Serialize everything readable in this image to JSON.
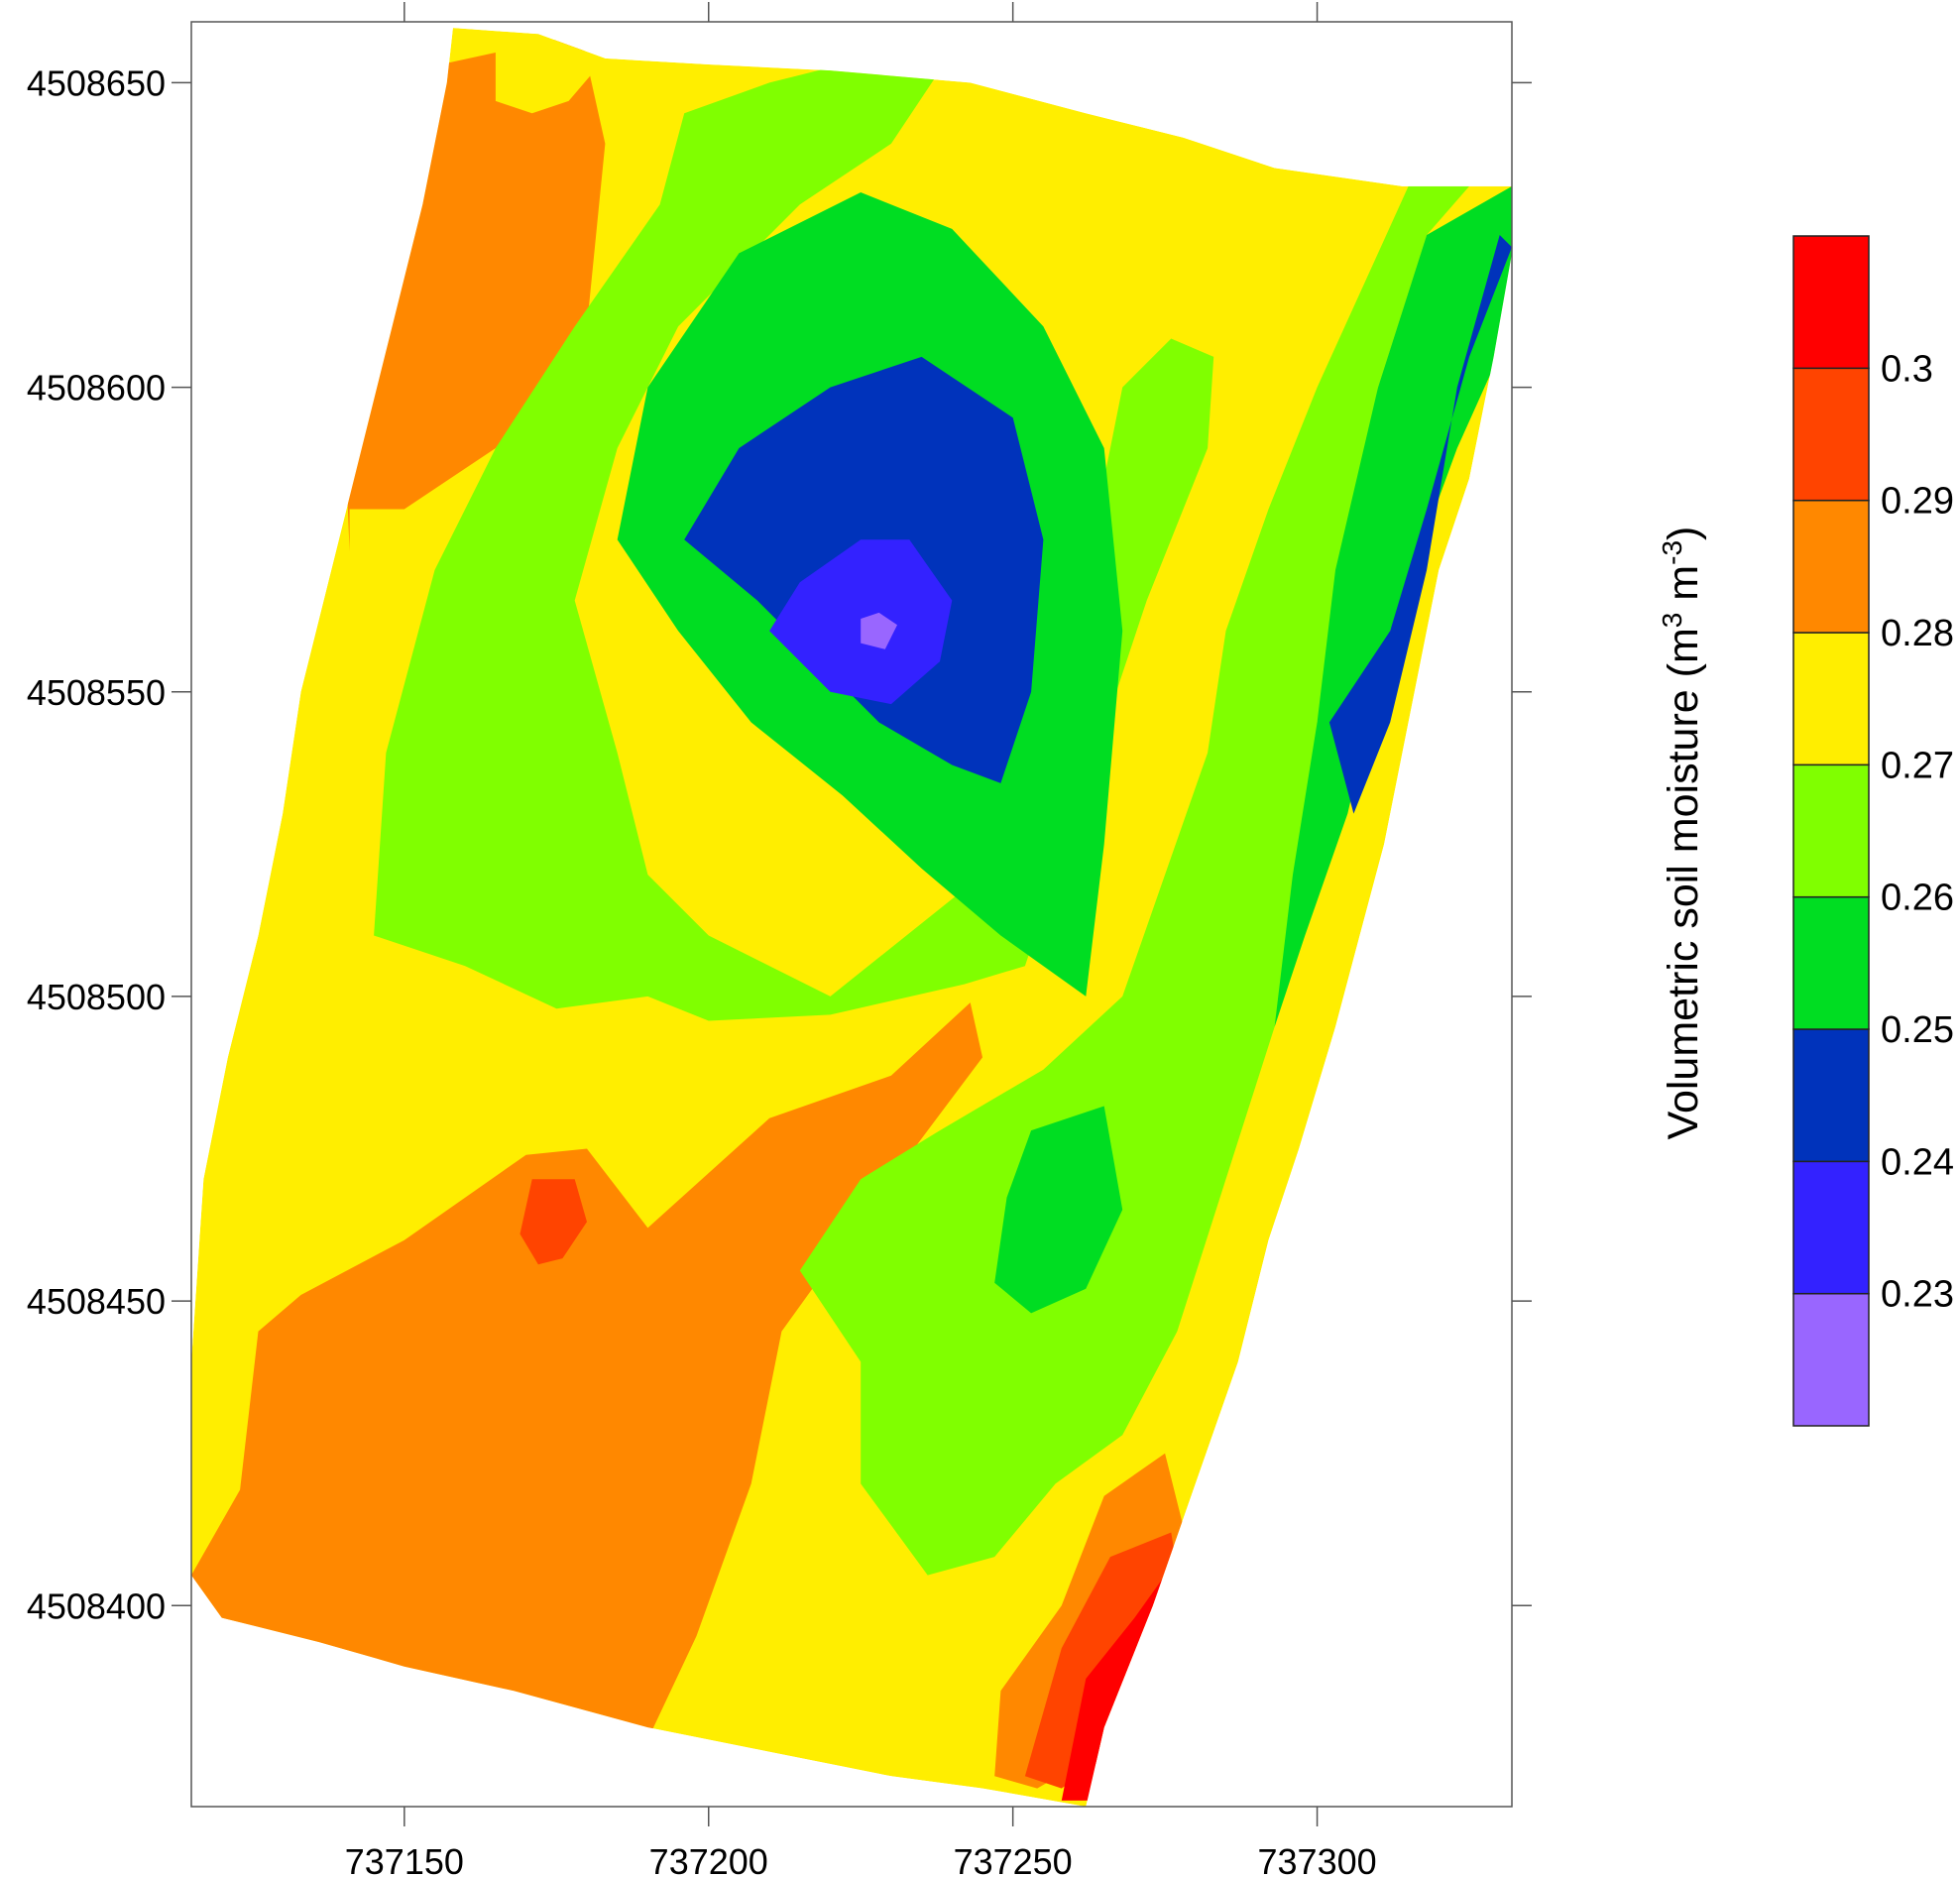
{
  "chart_data": {
    "type": "heatmap",
    "subtype": "filled-contour-map",
    "title": "",
    "xlabel": "",
    "ylabel": "",
    "xlim": [
      737115,
      737332
    ],
    "ylim": [
      4508367,
      4508660
    ],
    "x_ticks": [
      737150,
      737200,
      737250,
      737300
    ],
    "y_ticks": [
      4508400,
      4508450,
      4508500,
      4508550,
      4508600,
      4508650
    ],
    "x_tick_labels": [
      "737150",
      "737200",
      "737250",
      "737300"
    ],
    "y_tick_labels": [
      "4508400",
      "4508450",
      "4508500",
      "4508550",
      "4508600",
      "4508650"
    ],
    "grid": false,
    "colorbar": {
      "title_main": "Volumetric soil moisture (m",
      "title_sup1": "3",
      "title_mid": " m",
      "title_sup2": "-3",
      "title_end": ")",
      "levels": [
        "0.3",
        "0.29",
        "0.28",
        "0.27",
        "0.26",
        "0.25",
        "0.24",
        "0.23"
      ],
      "bands": [
        {
          "range": [
            0.22,
            0.23
          ],
          "color": "#9966ff"
        },
        {
          "range": [
            0.23,
            0.24
          ],
          "color": "#3322ff"
        },
        {
          "range": [
            0.24,
            0.25
          ],
          "color": "#0033bb"
        },
        {
          "range": [
            0.25,
            0.26
          ],
          "color": "#00dd22"
        },
        {
          "range": [
            0.26,
            0.27
          ],
          "color": "#80ff00"
        },
        {
          "range": [
            0.27,
            0.28
          ],
          "color": "#ffee00"
        },
        {
          "range": [
            0.28,
            0.29
          ],
          "color": "#ff8800"
        },
        {
          "range": [
            0.29,
            0.3
          ],
          "color": "#ff4400"
        },
        {
          "range": [
            0.3,
            0.31
          ],
          "color": "#ff0000"
        }
      ]
    },
    "contour_regions": [
      {
        "value_band": [
          0.28,
          0.29
        ],
        "color": "#ff8800",
        "polygon": [
          [
            737115,
            4508405
          ],
          [
            737123,
            4508419
          ],
          [
            737126,
            4508445
          ],
          [
            737133,
            4508451
          ],
          [
            737150,
            4508460
          ],
          [
            737170,
            4508474
          ],
          [
            737180,
            4508475
          ],
          [
            737190,
            4508462
          ],
          [
            737210,
            4508480
          ],
          [
            737230,
            4508487
          ],
          [
            737243,
            4508499
          ],
          [
            737245,
            4508490
          ],
          [
            737230,
            4508470
          ],
          [
            737212,
            4508445
          ],
          [
            737207,
            4508420
          ],
          [
            737198,
            4508395
          ],
          [
            737190,
            4508378
          ],
          [
            737182,
            4508379
          ],
          [
            737170,
            4508381
          ],
          [
            737157,
            4508382
          ],
          [
            737145,
            4508388
          ],
          [
            737132,
            4508391
          ],
          [
            737120,
            4508397
          ]
        ]
      },
      {
        "value_band": [
          0.29,
          0.3
        ],
        "color": "#ff4400",
        "polygon": [
          [
            737171,
            4508470
          ],
          [
            737178,
            4508470
          ],
          [
            737180,
            4508463
          ],
          [
            737176,
            4508457
          ],
          [
            737172,
            4508456
          ],
          [
            737169,
            4508461
          ]
        ]
      },
      {
        "value_band": [
          0.28,
          0.29
        ],
        "color": "#ff8800",
        "polygon": [
          [
            737141,
            4508573
          ],
          [
            737140,
            4508598
          ],
          [
            737143,
            4508610
          ],
          [
            737147,
            4508628
          ],
          [
            737152,
            4508644
          ],
          [
            737156,
            4508653
          ],
          [
            737179,
            4508658
          ],
          [
            737183,
            4508640
          ],
          [
            737180,
            4508610
          ],
          [
            737165,
            4508590
          ],
          [
            737150,
            4508580
          ],
          [
            737141,
            4508580
          ]
        ]
      },
      {
        "value_band": [
          0.27,
          0.28
        ],
        "color": "#ffee00",
        "polygon": [
          [
            737165,
            4508658
          ],
          [
            737172,
            4508658
          ],
          [
            737183,
            4508654
          ],
          [
            737177,
            4508647
          ],
          [
            737171,
            4508645
          ],
          [
            737165,
            4508647
          ]
        ]
      },
      {
        "value_band": [
          0.26,
          0.27
        ],
        "color": "#80ff00",
        "polygon": [
          [
            737145,
            4508510
          ],
          [
            737160,
            4508505
          ],
          [
            737175,
            4508498
          ],
          [
            737190,
            4508500
          ],
          [
            737200,
            4508496
          ],
          [
            737220,
            4508497
          ],
          [
            737242,
            4508502
          ],
          [
            737252,
            4508505
          ],
          [
            737262,
            4508535
          ],
          [
            737272,
            4508565
          ],
          [
            737282,
            4508590
          ],
          [
            737283,
            4508605
          ],
          [
            737276,
            4508608
          ],
          [
            737268,
            4508600
          ],
          [
            737260,
            4508560
          ],
          [
            737245,
            4508520
          ],
          [
            737220,
            4508500
          ],
          [
            737200,
            4508510
          ],
          [
            737190,
            4508520
          ],
          [
            737185,
            4508540
          ],
          [
            737178,
            4508565
          ],
          [
            737185,
            4508590
          ],
          [
            737195,
            4508610
          ],
          [
            737215,
            4508630
          ],
          [
            737230,
            4508640
          ],
          [
            737240,
            4508655
          ],
          [
            737230,
            4508655
          ],
          [
            737210,
            4508650
          ],
          [
            737196,
            4508645
          ],
          [
            737192,
            4508630
          ],
          [
            737178,
            4508610
          ],
          [
            737165,
            4508590
          ],
          [
            737155,
            4508570
          ],
          [
            737147,
            4508540
          ]
        ]
      },
      {
        "value_band": [
          0.26,
          0.27
        ],
        "color": "#80ff00",
        "polygon": [
          [
            737215,
            4508455
          ],
          [
            737225,
            4508440
          ],
          [
            737225,
            4508420
          ],
          [
            737236,
            4508405
          ],
          [
            737247,
            4508408
          ],
          [
            737257,
            4508420
          ],
          [
            737268,
            4508428
          ],
          [
            737277,
            4508445
          ],
          [
            737285,
            4508470
          ],
          [
            737293,
            4508495
          ],
          [
            737298,
            4508520
          ],
          [
            737300,
            4508545
          ],
          [
            737305,
            4508575
          ],
          [
            737310,
            4508600
          ],
          [
            737318,
            4508625
          ],
          [
            737325,
            4508633
          ],
          [
            737315,
            4508633
          ],
          [
            737300,
            4508600
          ],
          [
            737292,
            4508580
          ],
          [
            737285,
            4508560
          ],
          [
            737282,
            4508540
          ],
          [
            737275,
            4508520
          ],
          [
            737268,
            4508500
          ],
          [
            737255,
            4508488
          ],
          [
            737238,
            4508478
          ],
          [
            737225,
            4508470
          ]
        ]
      },
      {
        "value_band": [
          0.25,
          0.26
        ],
        "color": "#00dd22",
        "polygon": [
          [
            737185,
            4508575
          ],
          [
            737195,
            4508560
          ],
          [
            737207,
            4508545
          ],
          [
            737222,
            4508533
          ],
          [
            737235,
            4508521
          ],
          [
            737248,
            4508510
          ],
          [
            737262,
            4508500
          ],
          [
            737265,
            4508525
          ],
          [
            737268,
            4508560
          ],
          [
            737265,
            4508590
          ],
          [
            737255,
            4508610
          ],
          [
            737240,
            4508626
          ],
          [
            737225,
            4508632
          ],
          [
            737205,
            4508622
          ],
          [
            737190,
            4508600
          ]
        ]
      },
      {
        "value_band": [
          0.25,
          0.26
        ],
        "color": "#00dd22",
        "polygon": [
          [
            737253,
            4508478
          ],
          [
            737265,
            4508482
          ],
          [
            737268,
            4508465
          ],
          [
            737262,
            4508452
          ],
          [
            737253,
            4508448
          ],
          [
            737247,
            4508453
          ],
          [
            737249,
            4508467
          ]
        ]
      },
      {
        "value_band": [
          0.25,
          0.26
        ],
        "color": "#00dd22",
        "polygon": [
          [
            737293,
            4508495
          ],
          [
            737296,
            4508520
          ],
          [
            737300,
            4508545
          ],
          [
            737303,
            4508570
          ],
          [
            737310,
            4508600
          ],
          [
            737318,
            4508625
          ],
          [
            737332,
            4508633
          ],
          [
            737332,
            4508610
          ],
          [
            737323,
            4508590
          ],
          [
            737312,
            4508560
          ],
          [
            737305,
            4508530
          ],
          [
            737298,
            4508510
          ]
        ]
      },
      {
        "value_band": [
          0.24,
          0.25
        ],
        "color": "#0033bb",
        "polygon": [
          [
            737208,
            4508565
          ],
          [
            737218,
            4508555
          ],
          [
            737228,
            4508545
          ],
          [
            737240,
            4508538
          ],
          [
            737248,
            4508535
          ],
          [
            737253,
            4508550
          ],
          [
            737255,
            4508575
          ],
          [
            737250,
            4508595
          ],
          [
            737235,
            4508605
          ],
          [
            737220,
            4508600
          ],
          [
            737205,
            4508590
          ],
          [
            737196,
            4508575
          ]
        ]
      },
      {
        "value_band": [
          0.24,
          0.25
        ],
        "color": "#0033bb",
        "polygon": [
          [
            737302,
            4508545
          ],
          [
            737306,
            4508530
          ],
          [
            737312,
            4508545
          ],
          [
            737318,
            4508570
          ],
          [
            737323,
            4508600
          ],
          [
            737330,
            4508625
          ],
          [
            737332,
            4508623
          ],
          [
            737325,
            4508605
          ],
          [
            737318,
            4508580
          ],
          [
            737312,
            4508560
          ]
        ]
      },
      {
        "value_band": [
          0.23,
          0.24
        ],
        "color": "#3322ff",
        "polygon": [
          [
            737210,
            4508560
          ],
          [
            737220,
            4508550
          ],
          [
            737230,
            4508548
          ],
          [
            737238,
            4508555
          ],
          [
            737240,
            4508565
          ],
          [
            737233,
            4508575
          ],
          [
            737225,
            4508575
          ],
          [
            737215,
            4508568
          ]
        ]
      },
      {
        "value_band": [
          0.22,
          0.23
        ],
        "color": "#9966ff",
        "polygon": [
          [
            737225,
            4508558
          ],
          [
            737229,
            4508557
          ],
          [
            737231,
            4508561
          ],
          [
            737228,
            4508563
          ],
          [
            737225,
            4508562
          ]
        ]
      },
      {
        "value_band": [
          0.28,
          0.29
        ],
        "color": "#ff8800",
        "polygon": [
          [
            737247,
            4508372
          ],
          [
            737254,
            4508370
          ],
          [
            737268,
            4508378
          ],
          [
            737280,
            4508405
          ],
          [
            737275,
            4508425
          ],
          [
            737265,
            4508418
          ],
          [
            737258,
            4508400
          ],
          [
            737248,
            4508386
          ]
        ]
      },
      {
        "value_band": [
          0.29,
          0.3
        ],
        "color": "#ff4400",
        "polygon": [
          [
            737252,
            4508372
          ],
          [
            737258,
            4508370
          ],
          [
            737265,
            4508375
          ],
          [
            737278,
            4508400
          ],
          [
            737276,
            4508412
          ],
          [
            737266,
            4508408
          ],
          [
            737258,
            4508393
          ]
        ]
      },
      {
        "value_band": [
          0.3,
          0.31
        ],
        "color": "#ff0000",
        "polygon": [
          [
            737258,
            4508368
          ],
          [
            737263,
            4508368
          ],
          [
            737272,
            4508385
          ],
          [
            737275,
            4508405
          ],
          [
            737270,
            4508398
          ],
          [
            737262,
            4508388
          ]
        ]
      }
    ],
    "domain_outline": [
      [
        737115,
        4508405
      ],
      [
        737120,
        4508398
      ],
      [
        737136,
        4508394
      ],
      [
        737150,
        4508390
      ],
      [
        737168,
        4508386
      ],
      [
        737190,
        4508380
      ],
      [
        737210,
        4508376
      ],
      [
        737230,
        4508372
      ],
      [
        737245,
        4508370
      ],
      [
        737262,
        4508367
      ],
      [
        737265,
        4508380
      ],
      [
        737273,
        4508400
      ],
      [
        737280,
        4508420
      ],
      [
        737287,
        4508440
      ],
      [
        737292,
        4508460
      ],
      [
        737297,
        4508475
      ],
      [
        737303,
        4508495
      ],
      [
        737307,
        4508510
      ],
      [
        737311,
        4508525
      ],
      [
        737315,
        4508545
      ],
      [
        737320,
        4508570
      ],
      [
        737325,
        4508585
      ],
      [
        737329,
        4508605
      ],
      [
        737332,
        4508622
      ],
      [
        737332,
        4508633
      ],
      [
        737314,
        4508633
      ],
      [
        737293,
        4508636
      ],
      [
        737278,
        4508641
      ],
      [
        737262,
        4508645
      ],
      [
        737243,
        4508650
      ],
      [
        737220,
        4508652
      ],
      [
        737200,
        4508653
      ],
      [
        737183,
        4508654
      ],
      [
        737172,
        4508658
      ],
      [
        737158,
        4508659
      ],
      [
        737157,
        4508650
      ],
      [
        737153,
        4508630
      ],
      [
        737148,
        4508610
      ],
      [
        737143,
        4508590
      ],
      [
        737138,
        4508570
      ],
      [
        737133,
        4508550
      ],
      [
        737130,
        4508530
      ],
      [
        737126,
        4508510
      ],
      [
        737121,
        4508490
      ],
      [
        737117,
        4508470
      ],
      [
        737115,
        4508440
      ]
    ]
  }
}
